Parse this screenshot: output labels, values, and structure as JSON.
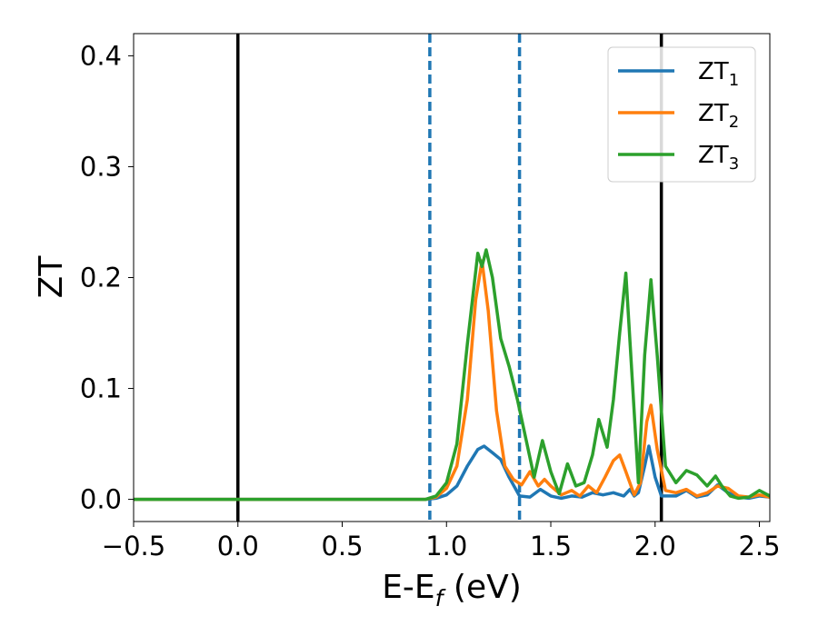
{
  "chart_data": {
    "type": "line",
    "title": "",
    "xlabel": {
      "main": "E-E",
      "sub": "f",
      "tail": " (eV)"
    },
    "ylabel": "ZT",
    "xlim": [
      -0.5,
      2.55
    ],
    "ylim": [
      -0.02,
      0.42
    ],
    "xticks": [
      -0.5,
      0.0,
      0.5,
      1.0,
      1.5,
      2.0,
      2.5
    ],
    "xtick_labels": [
      "−0.5",
      "0.0",
      "0.5",
      "1.0",
      "1.5",
      "2.0",
      "2.5"
    ],
    "yticks": [
      0.0,
      0.1,
      0.2,
      0.3,
      0.4
    ],
    "ytick_labels": [
      "0.0",
      "0.1",
      "0.2",
      "0.3",
      "0.4"
    ],
    "grid": false,
    "legend_position": "top-right",
    "vlines": [
      {
        "x": 0.0,
        "style": "solid",
        "color": "#000000"
      },
      {
        "x": 2.03,
        "style": "solid",
        "color": "#000000"
      },
      {
        "x": 0.92,
        "style": "dashed",
        "color": "#1f77b4"
      },
      {
        "x": 1.35,
        "style": "dashed",
        "color": "#1f77b4"
      }
    ],
    "series": [
      {
        "name": "ZT",
        "subscript": "1",
        "color": "#1f77b4",
        "points": [
          [
            -0.5,
            0
          ],
          [
            0.9,
            0
          ],
          [
            0.95,
            0.001
          ],
          [
            1.0,
            0.004
          ],
          [
            1.05,
            0.012
          ],
          [
            1.1,
            0.03
          ],
          [
            1.15,
            0.045
          ],
          [
            1.18,
            0.048
          ],
          [
            1.22,
            0.042
          ],
          [
            1.26,
            0.036
          ],
          [
            1.3,
            0.02
          ],
          [
            1.35,
            0.003
          ],
          [
            1.4,
            0.002
          ],
          [
            1.45,
            0.009
          ],
          [
            1.5,
            0.003
          ],
          [
            1.55,
            0.001
          ],
          [
            1.6,
            0.003
          ],
          [
            1.65,
            0.002
          ],
          [
            1.7,
            0.006
          ],
          [
            1.75,
            0.004
          ],
          [
            1.8,
            0.006
          ],
          [
            1.85,
            0.003
          ],
          [
            1.88,
            0.009
          ],
          [
            1.9,
            0.003
          ],
          [
            1.92,
            0.006
          ],
          [
            1.95,
            0.03
          ],
          [
            1.97,
            0.048
          ],
          [
            2.0,
            0.02
          ],
          [
            2.03,
            0.003
          ],
          [
            2.1,
            0.003
          ],
          [
            2.15,
            0.008
          ],
          [
            2.2,
            0.002
          ],
          [
            2.25,
            0.004
          ],
          [
            2.3,
            0.013
          ],
          [
            2.35,
            0.006
          ],
          [
            2.4,
            0.002
          ],
          [
            2.45,
            0.001
          ],
          [
            2.5,
            0.003
          ],
          [
            2.55,
            0.002
          ]
        ]
      },
      {
        "name": "ZT",
        "subscript": "2",
        "color": "#ff7f0e",
        "points": [
          [
            -0.5,
            0
          ],
          [
            0.9,
            0
          ],
          [
            0.95,
            0.002
          ],
          [
            1.0,
            0.01
          ],
          [
            1.05,
            0.03
          ],
          [
            1.1,
            0.09
          ],
          [
            1.14,
            0.18
          ],
          [
            1.17,
            0.215
          ],
          [
            1.2,
            0.17
          ],
          [
            1.24,
            0.08
          ],
          [
            1.28,
            0.03
          ],
          [
            1.32,
            0.018
          ],
          [
            1.36,
            0.013
          ],
          [
            1.4,
            0.025
          ],
          [
            1.44,
            0.012
          ],
          [
            1.47,
            0.018
          ],
          [
            1.5,
            0.012
          ],
          [
            1.55,
            0.004
          ],
          [
            1.6,
            0.008
          ],
          [
            1.64,
            0.003
          ],
          [
            1.68,
            0.012
          ],
          [
            1.72,
            0.006
          ],
          [
            1.76,
            0.02
          ],
          [
            1.8,
            0.035
          ],
          [
            1.83,
            0.04
          ],
          [
            1.86,
            0.025
          ],
          [
            1.9,
            0.004
          ],
          [
            1.93,
            0.015
          ],
          [
            1.96,
            0.07
          ],
          [
            1.98,
            0.085
          ],
          [
            2.01,
            0.045
          ],
          [
            2.05,
            0.008
          ],
          [
            2.1,
            0.006
          ],
          [
            2.15,
            0.009
          ],
          [
            2.2,
            0.003
          ],
          [
            2.25,
            0.006
          ],
          [
            2.3,
            0.012
          ],
          [
            2.35,
            0.01
          ],
          [
            2.4,
            0.003
          ],
          [
            2.45,
            0.002
          ],
          [
            2.5,
            0.004
          ],
          [
            2.55,
            0.002
          ]
        ]
      },
      {
        "name": "ZT",
        "subscript": "3",
        "color": "#2ca02c",
        "points": [
          [
            -0.5,
            0
          ],
          [
            0.9,
            0
          ],
          [
            0.95,
            0.003
          ],
          [
            1.0,
            0.015
          ],
          [
            1.05,
            0.05
          ],
          [
            1.1,
            0.14
          ],
          [
            1.15,
            0.222
          ],
          [
            1.17,
            0.21
          ],
          [
            1.19,
            0.225
          ],
          [
            1.22,
            0.2
          ],
          [
            1.26,
            0.145
          ],
          [
            1.3,
            0.12
          ],
          [
            1.34,
            0.09
          ],
          [
            1.38,
            0.055
          ],
          [
            1.42,
            0.02
          ],
          [
            1.46,
            0.053
          ],
          [
            1.5,
            0.025
          ],
          [
            1.54,
            0.005
          ],
          [
            1.58,
            0.032
          ],
          [
            1.62,
            0.012
          ],
          [
            1.66,
            0.015
          ],
          [
            1.7,
            0.04
          ],
          [
            1.73,
            0.072
          ],
          [
            1.77,
            0.047
          ],
          [
            1.8,
            0.09
          ],
          [
            1.83,
            0.15
          ],
          [
            1.86,
            0.204
          ],
          [
            1.89,
            0.11
          ],
          [
            1.92,
            0.015
          ],
          [
            1.95,
            0.13
          ],
          [
            1.98,
            0.198
          ],
          [
            2.01,
            0.13
          ],
          [
            2.05,
            0.03
          ],
          [
            2.1,
            0.015
          ],
          [
            2.15,
            0.026
          ],
          [
            2.2,
            0.022
          ],
          [
            2.25,
            0.012
          ],
          [
            2.29,
            0.021
          ],
          [
            2.32,
            0.012
          ],
          [
            2.36,
            0.003
          ],
          [
            2.4,
            0.001
          ],
          [
            2.45,
            0.002
          ],
          [
            2.5,
            0.008
          ],
          [
            2.55,
            0.003
          ]
        ]
      }
    ]
  }
}
